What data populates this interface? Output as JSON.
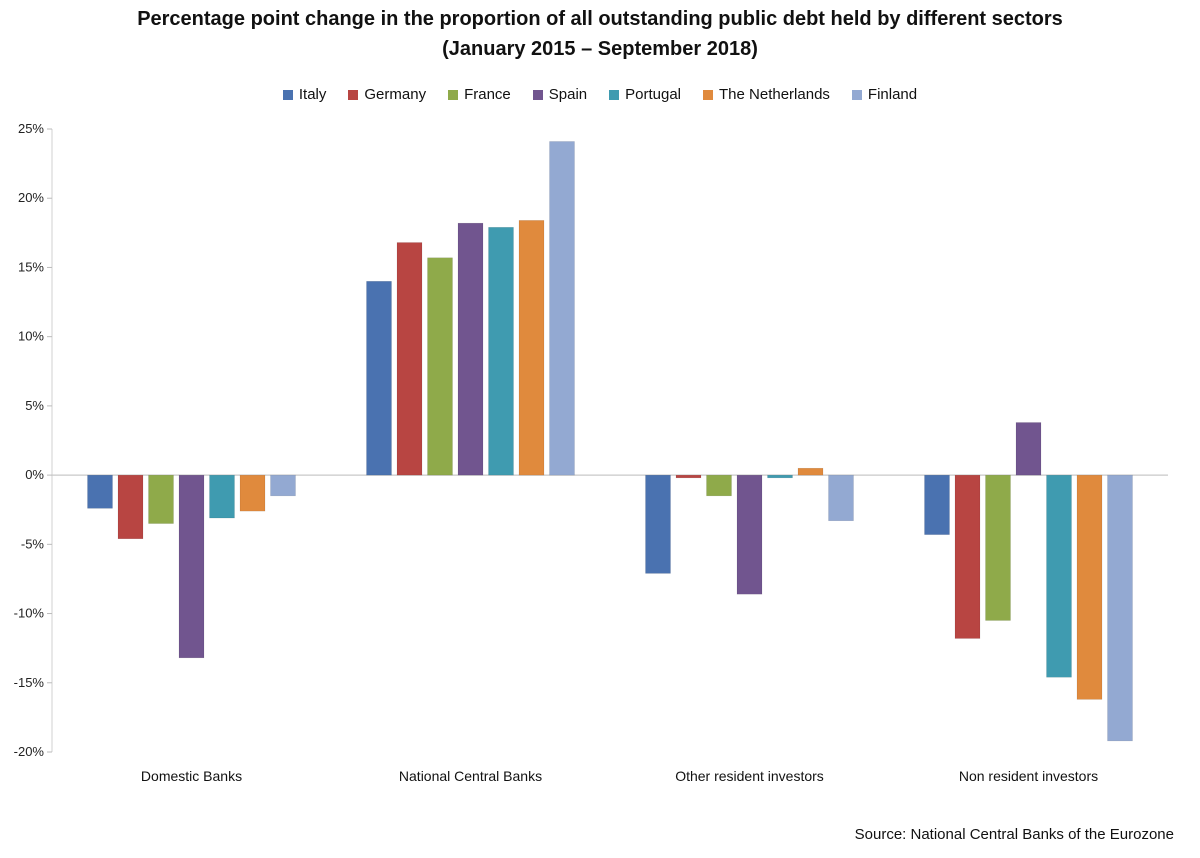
{
  "chart_data": {
    "type": "bar",
    "title": "Percentage point change in the proportion of all outstanding public debt held by different sectors",
    "subtitle": "(January 2015 – September 2018)",
    "categories": [
      "Domestic Banks",
      "National Central Banks",
      "Other resident investors",
      "Non resident investors"
    ],
    "series": [
      {
        "name": "Italy",
        "color": "#4a72b0",
        "values": [
          -2.4,
          14.0,
          -7.1,
          -4.3
        ]
      },
      {
        "name": "Germany",
        "color": "#b84542",
        "values": [
          -4.6,
          16.8,
          -0.2,
          -11.8
        ]
      },
      {
        "name": "France",
        "color": "#8faa4a",
        "values": [
          -3.5,
          15.7,
          -1.5,
          -10.5
        ]
      },
      {
        "name": "Spain",
        "color": "#71558f",
        "values": [
          -13.2,
          18.2,
          -8.6,
          3.8
        ]
      },
      {
        "name": "Portugal",
        "color": "#3f9bb0",
        "values": [
          -3.1,
          17.9,
          -0.2,
          -14.6
        ]
      },
      {
        "name": "The Netherlands",
        "color": "#e08a3d",
        "values": [
          -2.6,
          18.4,
          0.5,
          -16.2
        ]
      },
      {
        "name": "Finland",
        "color": "#93a9d2",
        "values": [
          -1.5,
          24.1,
          -3.3,
          -19.2
        ]
      }
    ],
    "ylim": [
      -20,
      25
    ],
    "yticks": [
      25,
      20,
      15,
      10,
      5,
      0,
      -5,
      -10,
      -15,
      -20
    ],
    "ytick_labels": [
      "25%",
      "20%",
      "15%",
      "10%",
      "5%",
      "0%",
      "-5%",
      "-10%",
      "-15%",
      "-20%"
    ],
    "xlabel": "",
    "ylabel": "",
    "legend_position": "top",
    "grid": false
  },
  "source": "Source: National Central Banks of the Eurozone"
}
